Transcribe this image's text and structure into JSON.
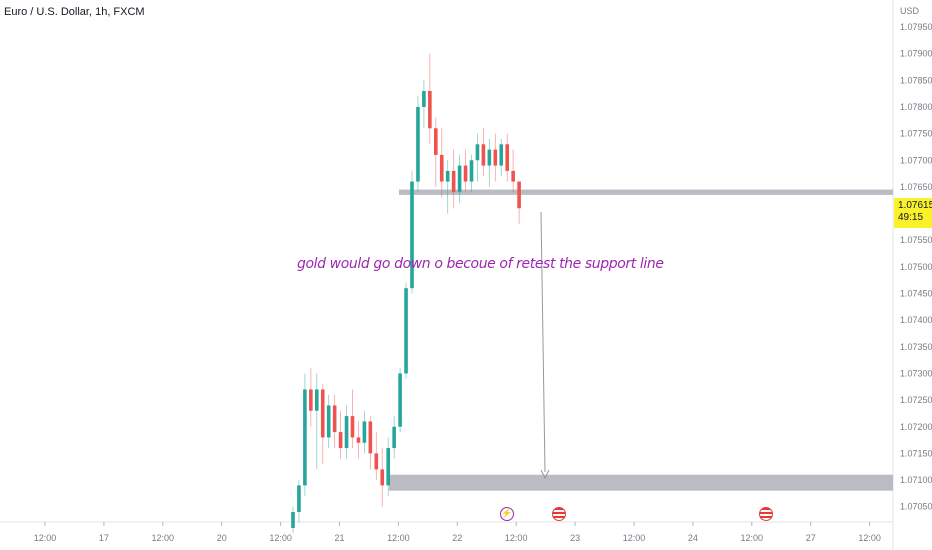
{
  "header": {
    "title": "Euro / U.S. Dollar, 1h, FXCM"
  },
  "price_axis": {
    "currency": "USD",
    "labels": [
      "1.07950",
      "1.07900",
      "1.07850",
      "1.07800",
      "1.07750",
      "1.07700",
      "1.07650",
      "1.07600",
      "1.07550",
      "1.07500",
      "1.07450",
      "1.07400",
      "1.07350",
      "1.07300",
      "1.07250",
      "1.07200",
      "1.07150",
      "1.07100",
      "1.07050"
    ]
  },
  "time_axis": {
    "labels": [
      "12:00",
      "17",
      "12:00",
      "20",
      "12:00",
      "21",
      "12:00",
      "22",
      "12:00",
      "23",
      "12:00",
      "24",
      "12:00",
      "27",
      "12:00"
    ]
  },
  "current_price": {
    "value": "1.07615",
    "countdown": "49:15",
    "color": "#f9f12a"
  },
  "annotation": {
    "text": "gold would go down o becoue of  retest the  support line",
    "color": "#9c27b0"
  },
  "events": [
    {
      "icon": "lightning-icon"
    },
    {
      "icon": "us-flag-icon"
    },
    {
      "icon": "us-flag-icon"
    }
  ],
  "colors": {
    "up": "#26a69a",
    "down": "#ef5350",
    "zone": "#b2b5be"
  },
  "chart_data": {
    "type": "candlestick",
    "title": "Euro / U.S. Dollar, 1h, FXCM",
    "ylim": [
      1.0703,
      1.0799
    ],
    "y_unit": "USD",
    "support_zones": [
      {
        "from": 1.07635,
        "to": 1.07645
      },
      {
        "from": 1.0708,
        "to": 1.0711
      }
    ],
    "candles": [
      {
        "o": 1.0701,
        "h": 1.0705,
        "l": 1.07,
        "c": 1.0704
      },
      {
        "o": 1.0704,
        "h": 1.071,
        "l": 1.0702,
        "c": 1.0709
      },
      {
        "o": 1.0709,
        "h": 1.073,
        "l": 1.0707,
        "c": 1.0727
      },
      {
        "o": 1.0727,
        "h": 1.0731,
        "l": 1.072,
        "c": 1.0723
      },
      {
        "o": 1.0723,
        "h": 1.073,
        "l": 1.0712,
        "c": 1.0727
      },
      {
        "o": 1.0727,
        "h": 1.0728,
        "l": 1.0713,
        "c": 1.0718
      },
      {
        "o": 1.0718,
        "h": 1.0726,
        "l": 1.0716,
        "c": 1.0724
      },
      {
        "o": 1.0724,
        "h": 1.0726,
        "l": 1.0716,
        "c": 1.0719
      },
      {
        "o": 1.0719,
        "h": 1.0723,
        "l": 1.0714,
        "c": 1.0716
      },
      {
        "o": 1.0716,
        "h": 1.0724,
        "l": 1.0714,
        "c": 1.0722
      },
      {
        "o": 1.0722,
        "h": 1.0727,
        "l": 1.0716,
        "c": 1.0718
      },
      {
        "o": 1.0718,
        "h": 1.0721,
        "l": 1.0714,
        "c": 1.0717
      },
      {
        "o": 1.0717,
        "h": 1.0723,
        "l": 1.0715,
        "c": 1.0721
      },
      {
        "o": 1.0721,
        "h": 1.0722,
        "l": 1.0712,
        "c": 1.0715
      },
      {
        "o": 1.0715,
        "h": 1.0719,
        "l": 1.071,
        "c": 1.0712
      },
      {
        "o": 1.0712,
        "h": 1.0716,
        "l": 1.0705,
        "c": 1.0709
      },
      {
        "o": 1.0709,
        "h": 1.0718,
        "l": 1.0707,
        "c": 1.0716
      },
      {
        "o": 1.0716,
        "h": 1.0722,
        "l": 1.0714,
        "c": 1.072
      },
      {
        "o": 1.072,
        "h": 1.0731,
        "l": 1.0719,
        "c": 1.073
      },
      {
        "o": 1.073,
        "h": 1.0747,
        "l": 1.0729,
        "c": 1.0746
      },
      {
        "o": 1.0746,
        "h": 1.0768,
        "l": 1.0745,
        "c": 1.0766
      },
      {
        "o": 1.0766,
        "h": 1.0782,
        "l": 1.0764,
        "c": 1.078
      },
      {
        "o": 1.078,
        "h": 1.0785,
        "l": 1.0776,
        "c": 1.0783
      },
      {
        "o": 1.0783,
        "h": 1.079,
        "l": 1.0773,
        "c": 1.0776
      },
      {
        "o": 1.0776,
        "h": 1.0778,
        "l": 1.0765,
        "c": 1.0771
      },
      {
        "o": 1.0771,
        "h": 1.0776,
        "l": 1.0763,
        "c": 1.0766
      },
      {
        "o": 1.0766,
        "h": 1.077,
        "l": 1.076,
        "c": 1.0768
      },
      {
        "o": 1.0768,
        "h": 1.0772,
        "l": 1.0761,
        "c": 1.0764
      },
      {
        "o": 1.0764,
        "h": 1.0771,
        "l": 1.0762,
        "c": 1.0769
      },
      {
        "o": 1.0769,
        "h": 1.0772,
        "l": 1.0764,
        "c": 1.0766
      },
      {
        "o": 1.0766,
        "h": 1.0771,
        "l": 1.0764,
        "c": 1.077
      },
      {
        "o": 1.077,
        "h": 1.0775,
        "l": 1.0766,
        "c": 1.0773
      },
      {
        "o": 1.0773,
        "h": 1.0776,
        "l": 1.0767,
        "c": 1.0769
      },
      {
        "o": 1.0769,
        "h": 1.0774,
        "l": 1.0765,
        "c": 1.0772
      },
      {
        "o": 1.0772,
        "h": 1.0775,
        "l": 1.0766,
        "c": 1.0769
      },
      {
        "o": 1.0769,
        "h": 1.0774,
        "l": 1.0767,
        "c": 1.0773
      },
      {
        "o": 1.0773,
        "h": 1.0775,
        "l": 1.0766,
        "c": 1.0768
      },
      {
        "o": 1.0768,
        "h": 1.0772,
        "l": 1.0764,
        "c": 1.0766
      },
      {
        "o": 1.0766,
        "h": 1.0766,
        "l": 1.0758,
        "c": 1.0761
      }
    ]
  }
}
